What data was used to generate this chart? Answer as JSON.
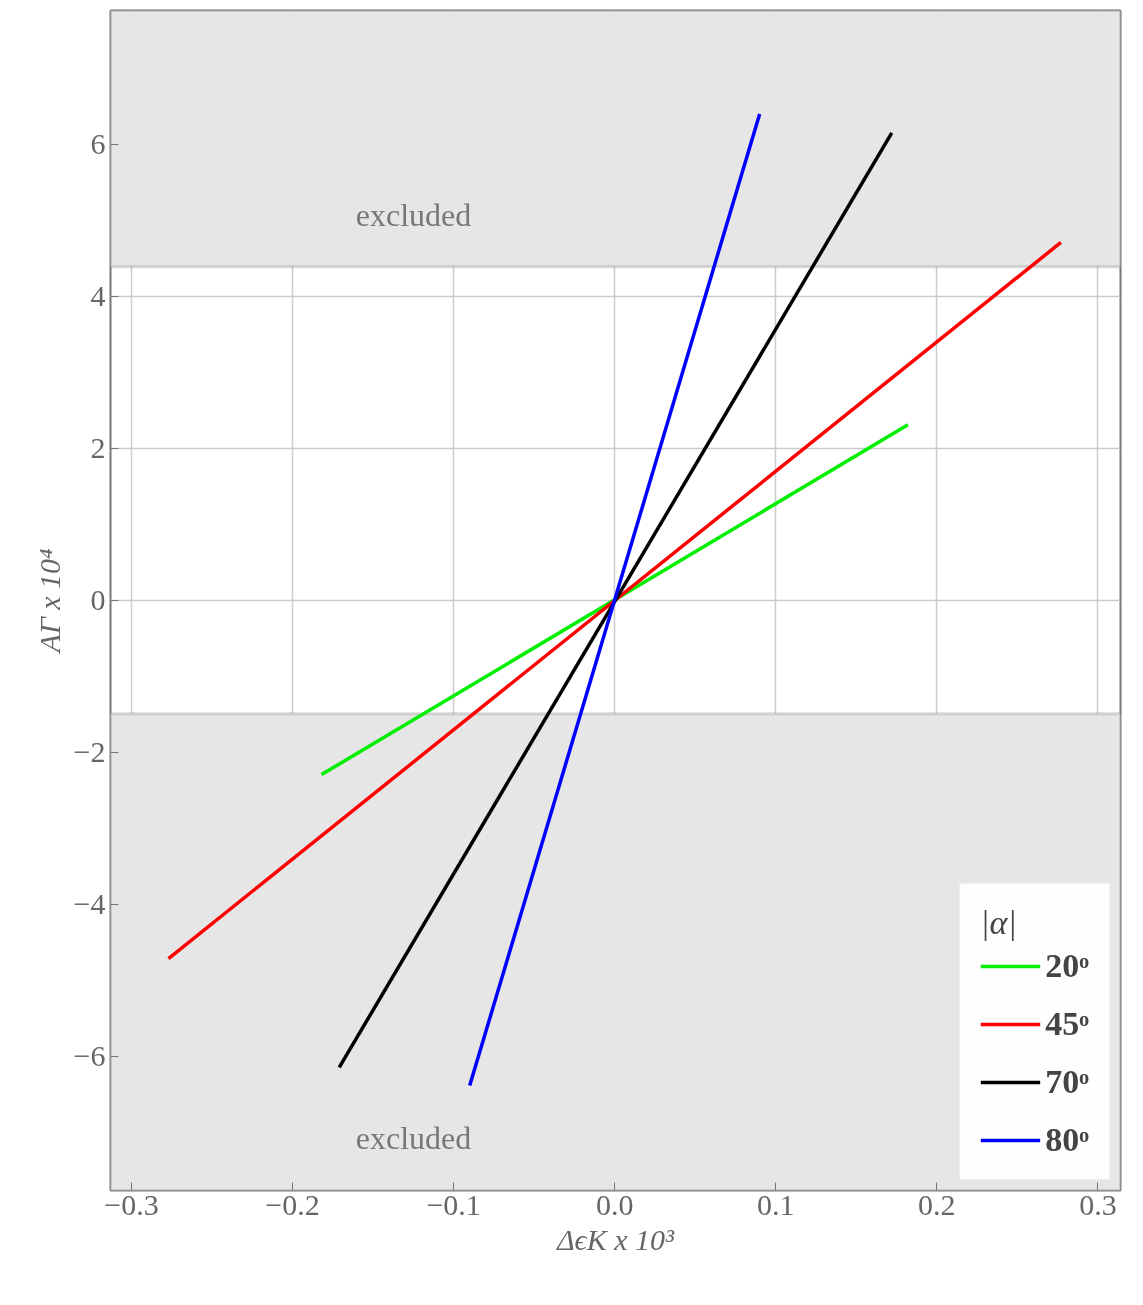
{
  "chart_data": {
    "type": "line",
    "xlabel": "ΔϵK x 10³",
    "ylabel": "AΓ x 10⁴",
    "legend_title": "|α|",
    "series": [
      {
        "name": "20ᵒ",
        "color": "#00ee00",
        "x": [
          -0.182,
          0.182
        ],
        "values": [
          -2.29,
          2.31
        ]
      },
      {
        "name": "45ᵒ",
        "color": "#ff0000",
        "x": [
          -0.277,
          0.277
        ],
        "values": [
          -4.71,
          4.71
        ]
      },
      {
        "name": "70ᵒ",
        "color": "#000000",
        "x": [
          -0.171,
          0.172
        ],
        "values": [
          -6.14,
          6.15
        ]
      },
      {
        "name": "80ᵒ",
        "color": "#0000ff",
        "x": [
          -0.09,
          0.09
        ],
        "values": [
          -6.38,
          6.4
        ]
      }
    ],
    "xlim": [
      -0.313,
      0.314
    ],
    "ylim": [
      -7.76,
      7.76
    ],
    "xticks": [
      {
        "value": -0.3,
        "label": "−0.3"
      },
      {
        "value": -0.2,
        "label": "−0.2"
      },
      {
        "value": -0.1,
        "label": "−0.1"
      },
      {
        "value": 0,
        "label": "0.0"
      },
      0.1,
      0.2,
      0.3
    ],
    "yticks": [
      {
        "value": -6,
        "label": "−6"
      },
      {
        "value": -4,
        "label": "−4"
      },
      {
        "value": -2,
        "label": "−2"
      },
      0,
      2,
      4,
      6
    ],
    "bands": [
      {
        "axis": "y",
        "from": 4.39,
        "to": 7.76,
        "label": "excluded",
        "color": "#e6e6e6"
      },
      {
        "axis": "y",
        "from": -7.76,
        "to": -1.49,
        "label": "excluded",
        "color": "#e6e6e6"
      }
    ],
    "grid": true,
    "legend": "bottom right",
    "line_style": "solid",
    "marker": "none"
  }
}
